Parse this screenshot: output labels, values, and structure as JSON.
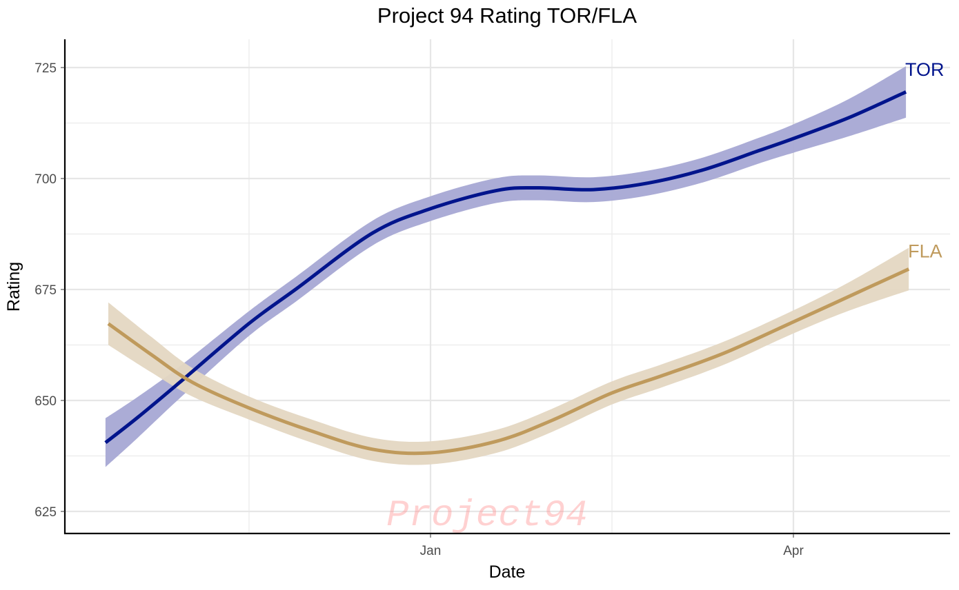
{
  "chart_data": {
    "type": "line",
    "title": "Project 94 Rating TOR/FLA",
    "xlabel": "Date",
    "ylabel": "Rating",
    "x_unit": "days relative to Jan 1",
    "xlim": [
      -94,
      128
    ],
    "ylim": [
      620,
      731
    ],
    "x_ticks": [
      {
        "label": "Jan",
        "value": 0
      },
      {
        "label": "Apr",
        "value": 90
      }
    ],
    "x_minor_ticks": [
      -45,
      45
    ],
    "y_ticks": [
      625,
      650,
      675,
      700,
      725
    ],
    "y_minor_ticks": [
      637.5,
      662.5,
      687.5,
      712.5
    ],
    "grid": true,
    "legend": "direct-labels-right",
    "watermark": "Project94",
    "series": [
      {
        "name": "TOR",
        "color": "#00148c",
        "band_color": "#a6a8d4",
        "x": [
          -80.6,
          -72.6,
          -62.3,
          -45.2,
          -33.2,
          -14.4,
          0,
          16.4,
          26.7,
          40.4,
          54.1,
          67.8,
          81.5,
          90,
          103.7,
          117.9
        ],
        "y": [
          640.5,
          646.2,
          654,
          667.2,
          675.2,
          687.7,
          693.2,
          697.3,
          697.9,
          697.5,
          699,
          702,
          706.3,
          709,
          713.7,
          719.5
        ],
        "band_halfwidth": [
          5.5,
          4.6,
          3.6,
          2.8,
          2.8,
          2.8,
          2.8,
          2.8,
          2.8,
          2.8,
          2.8,
          2.8,
          2.9,
          3.2,
          4.2,
          5.8
        ]
      },
      {
        "name": "FLA",
        "color": "#bf9a5c",
        "band_color": "#e4d7c2",
        "x": [
          -79.9,
          -69.2,
          -58.9,
          -45.0,
          -29.8,
          -14.4,
          0,
          16.4,
          30.1,
          45.0,
          57.5,
          72.9,
          90,
          103.7,
          118.6
        ],
        "y": [
          667.3,
          660.3,
          654,
          648.3,
          643.2,
          639,
          638.2,
          640.8,
          645.5,
          651.7,
          655.6,
          660.7,
          667.7,
          673.4,
          679.6
        ],
        "band_halfwidth": [
          4.8,
          4.0,
          3.2,
          2.6,
          2.6,
          2.6,
          2.6,
          2.6,
          2.6,
          2.6,
          2.6,
          2.6,
          2.6,
          3.2,
          4.8
        ]
      }
    ]
  }
}
